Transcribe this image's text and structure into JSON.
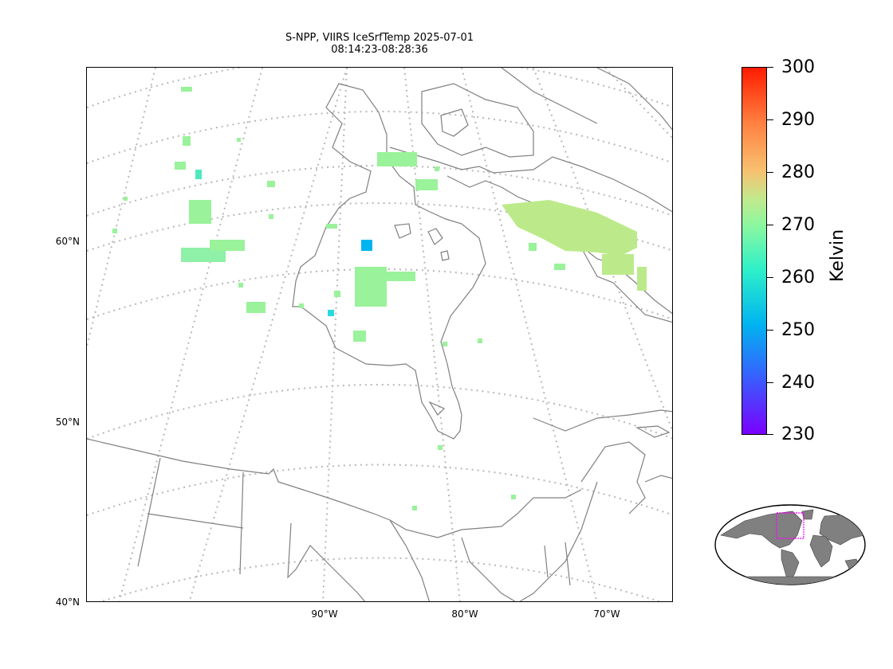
{
  "title": {
    "line1": "S-NPP, VIIRS IceSrfTemp 2025-07-01",
    "line2": "08:14:23-08:28:36"
  },
  "map": {
    "lat_labels": [
      "60°N",
      "50°N",
      "40°N"
    ],
    "lon_labels": [
      "90°W",
      "80°W",
      "70°W"
    ],
    "coast_color": "#808080",
    "grid_color": "#b0b0b0"
  },
  "colorbar": {
    "label": "Kelvin",
    "ticks": [
      "300",
      "290",
      "280",
      "270",
      "260",
      "250",
      "240",
      "230"
    ],
    "range": [
      230,
      300
    ],
    "colormap": "rainbow"
  },
  "inset": {
    "land_color": "#808080",
    "box_color": "#ff00ff"
  }
}
